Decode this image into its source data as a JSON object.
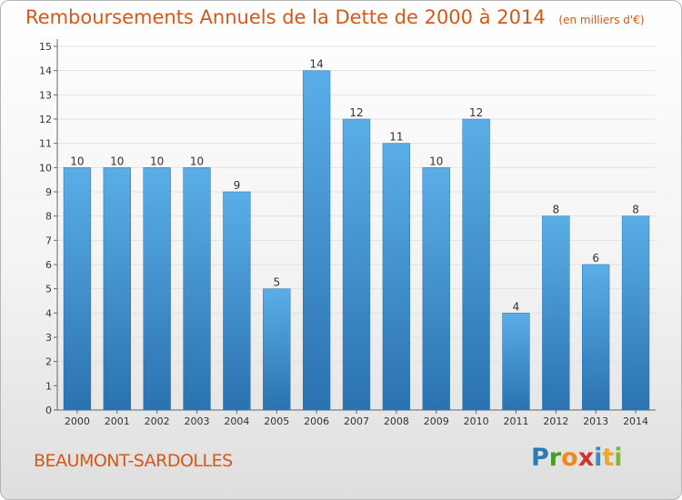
{
  "title": "Remboursements Annuels de la Dette de 2000 à 2014",
  "subtitle": "(en milliers d'€)",
  "commune": "BEAUMONT-SARDOLLES",
  "brand": {
    "letters": [
      "P",
      "r",
      "o",
      "x",
      "i",
      "t",
      "i"
    ],
    "colors": [
      "#2a7ab8",
      "#4a9a2c",
      "#f08a1c",
      "#d03428",
      "#3a8ac8",
      "#f0a828",
      "#7ab83c"
    ]
  },
  "colors": {
    "accent": "#d4581a",
    "bar_top": "#5aaee8",
    "bar_bottom": "#2a72b0"
  },
  "chart_data": {
    "type": "bar",
    "categories": [
      "2000",
      "2001",
      "2002",
      "2003",
      "2004",
      "2005",
      "2006",
      "2007",
      "2008",
      "2009",
      "2010",
      "2011",
      "2012",
      "2013",
      "2014"
    ],
    "values": [
      10,
      10,
      10,
      10,
      9,
      5,
      14,
      12,
      11,
      10,
      12,
      4,
      8,
      6,
      8
    ],
    "data_labels": [
      "10",
      "10",
      "10",
      "10",
      "9",
      "5",
      "14",
      "12",
      "11",
      "10",
      "12",
      "4",
      "8",
      "6",
      "8"
    ],
    "y_ticks": [
      "0",
      "1",
      "2",
      "3",
      "4",
      "5",
      "6",
      "7",
      "8",
      "9",
      "10",
      "11",
      "12",
      "13",
      "14",
      "15"
    ],
    "ylim": [
      0,
      15
    ],
    "grid": true,
    "legend": "none"
  }
}
